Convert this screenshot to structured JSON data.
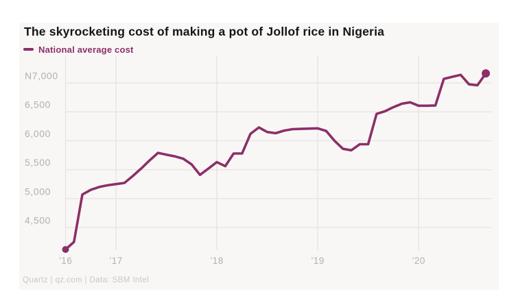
{
  "header": {
    "title": "The skyrocketing cost of making a pot of Jollof rice in Nigeria"
  },
  "legend": {
    "label": "National average cost",
    "color": "#8c2f68"
  },
  "footer": {
    "credit": "Quartz | qz.com | Data: SBM Intel"
  },
  "colors": {
    "line": "#8c2f68",
    "grid": "#e6e4e2",
    "axis_label": "#b2b0ae",
    "title": "#151515",
    "card_background": "#f8f7f6",
    "page_background": "#ffffff"
  },
  "chart_data": {
    "type": "line",
    "title": "The skyrocketing cost of making a pot of Jollof rice in Nigeria",
    "currency": "NGN",
    "frequency": "monthly",
    "x_start": "2016-07",
    "x_end": "2020-09",
    "grid": "horizontal-and-vertical",
    "legend_position": "top-left",
    "markers": "first-and-last-point",
    "ylim": [
      4050,
      7280
    ],
    "series": [
      {
        "name": "National average cost",
        "color": "#8c2f68",
        "values": [
          4120,
          4250,
          5070,
          5150,
          5200,
          5230,
          5250,
          5270,
          5390,
          5520,
          5660,
          5790,
          5760,
          5730,
          5690,
          5590,
          5410,
          5520,
          5630,
          5560,
          5780,
          5780,
          6120,
          6230,
          6150,
          6130,
          6175,
          6200,
          6205,
          6210,
          6215,
          6170,
          6000,
          5860,
          5835,
          5940,
          5940,
          6465,
          6510,
          6580,
          6640,
          6665,
          6605,
          6605,
          6610,
          7070,
          7105,
          7140,
          6975,
          6960,
          7165
        ]
      }
    ],
    "x_ticks": [
      {
        "label": "’16",
        "index": 0
      },
      {
        "label": "’17",
        "index": 6
      },
      {
        "label": "’18",
        "index": 18
      },
      {
        "label": "’19",
        "index": 30
      },
      {
        "label": "’20",
        "index": 42
      }
    ],
    "y_ticks": [
      {
        "label": "N7,000",
        "value": 7000
      },
      {
        "label": "6,500",
        "value": 6500
      },
      {
        "label": "6,000",
        "value": 6000
      },
      {
        "label": "5,500",
        "value": 5500
      },
      {
        "label": "5,000",
        "value": 5000
      },
      {
        "label": "4,500",
        "value": 4500
      }
    ]
  }
}
